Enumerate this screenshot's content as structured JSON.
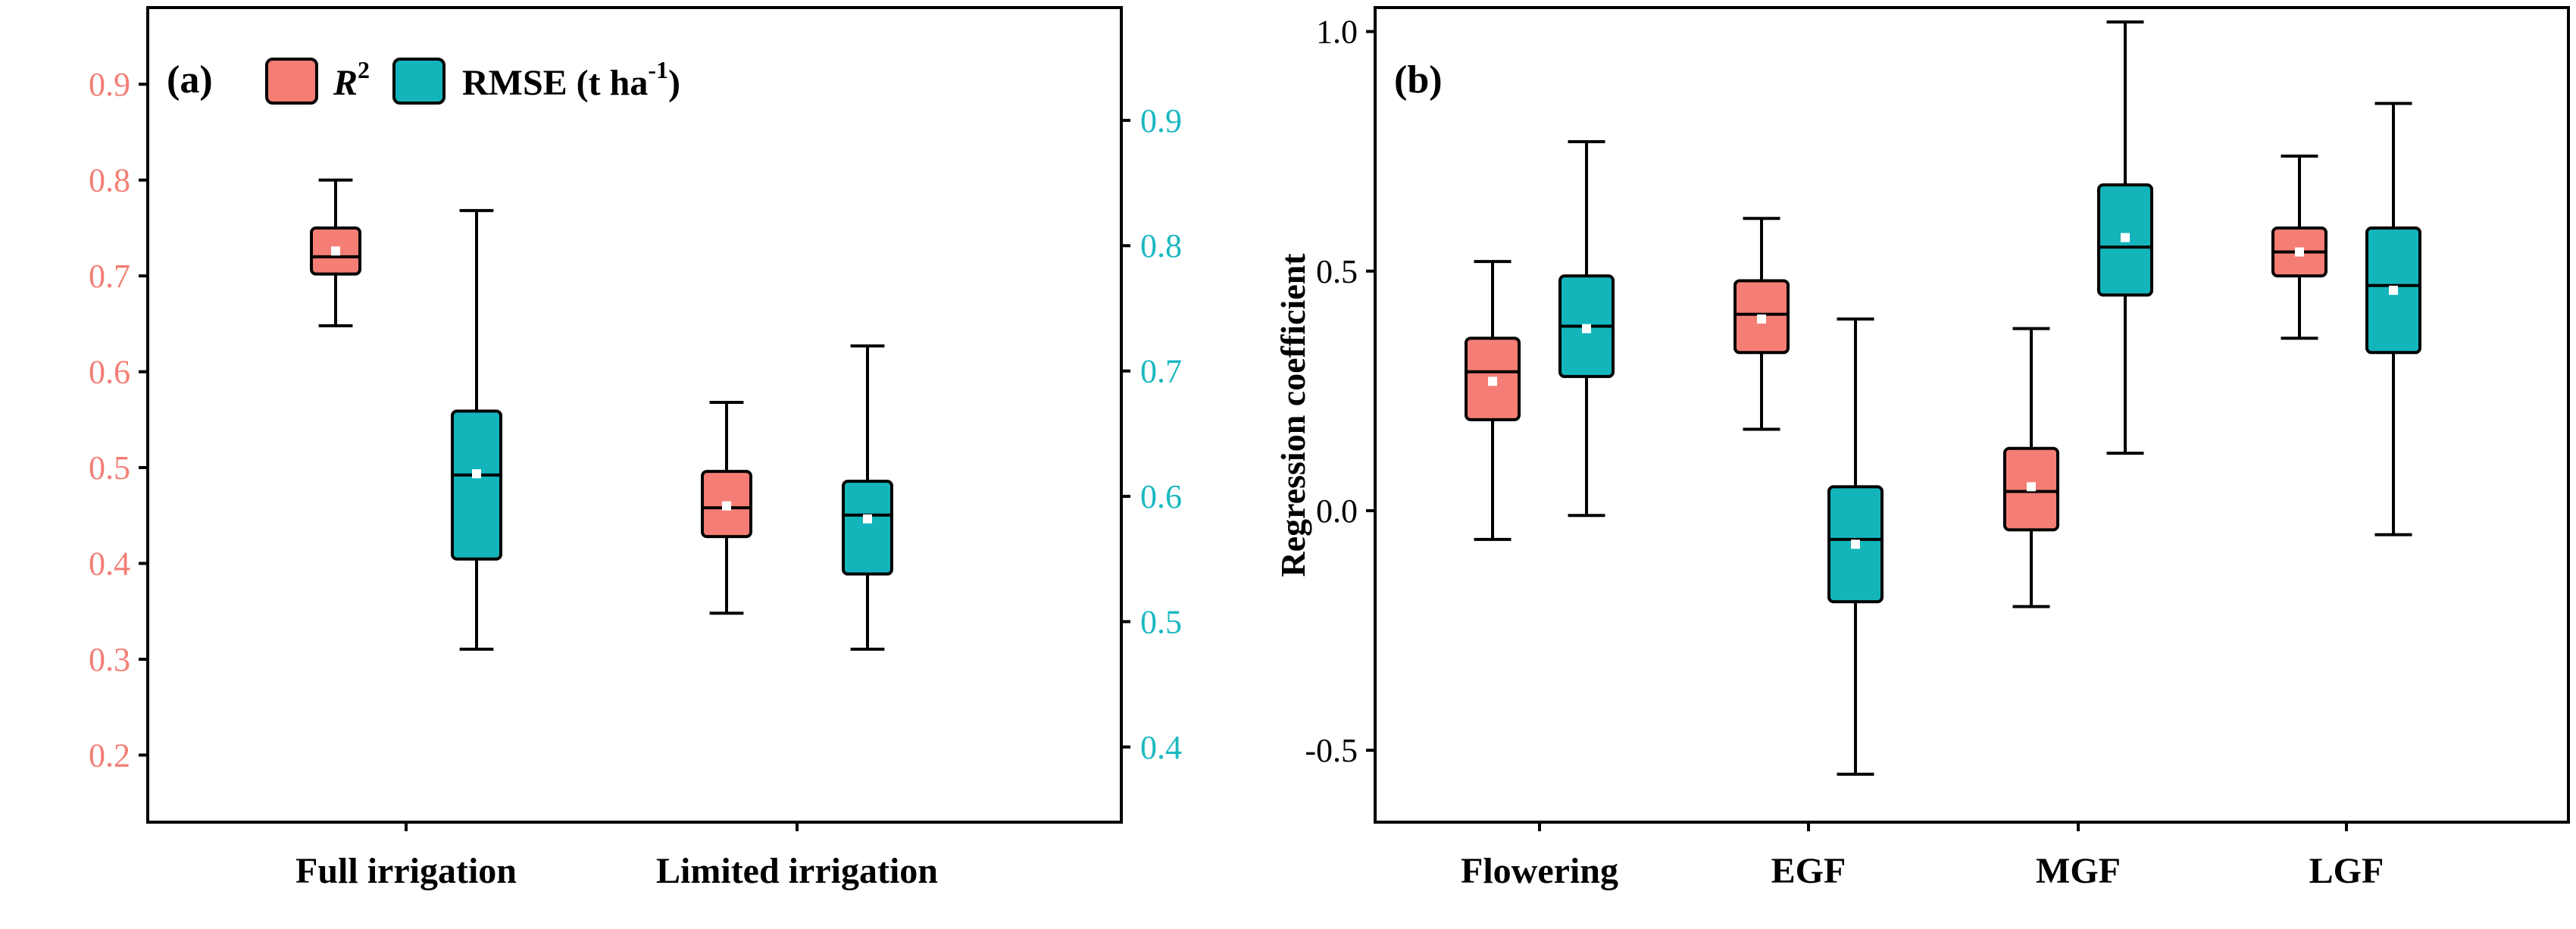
{
  "colors": {
    "r2": "#f47e75",
    "rmse": "#13b5bb",
    "axis": "#000000",
    "mean": "#ffffff"
  },
  "chart_data": [
    {
      "panel": "(a)",
      "type": "box",
      "categories": [
        "Full irrigation",
        "Limited irrigation"
      ],
      "legend": {
        "r2_label": "R",
        "r2_sup": "2",
        "rmse_label": "RMSE (t ha",
        "rmse_sup": "-1",
        "rmse_close": ")",
        "placement": "top-left"
      },
      "left_axis": {
        "ylim": [
          0.13,
          0.98
        ],
        "ticks": [
          "0.2",
          "0.3",
          "0.4",
          "0.5",
          "0.6",
          "0.7",
          "0.8",
          "0.9"
        ],
        "color": "#f47e75"
      },
      "right_axis": {
        "ylim": [
          0.34,
          0.99
        ],
        "ticks": [
          "0.4",
          "0.5",
          "0.6",
          "0.7",
          "0.8",
          "0.9"
        ],
        "color": "#1ab8c0"
      },
      "series": [
        {
          "name": "R2",
          "axis": "left",
          "boxes": [
            {
              "min": 0.648,
              "q1": 0.702,
              "median": 0.72,
              "q3": 0.75,
              "max": 0.8,
              "mean": 0.726
            },
            {
              "min": 0.348,
              "q1": 0.428,
              "median": 0.458,
              "q3": 0.496,
              "max": 0.568,
              "mean": 0.46
            }
          ]
        },
        {
          "name": "RMSE",
          "axis": "right",
          "boxes": [
            {
              "min": 0.478,
              "q1": 0.55,
              "median": 0.617,
              "q3": 0.668,
              "max": 0.828,
              "mean": 0.618
            },
            {
              "min": 0.478,
              "q1": 0.538,
              "median": 0.585,
              "q3": 0.612,
              "max": 0.72,
              "mean": 0.582
            }
          ]
        }
      ]
    },
    {
      "panel": "(b)",
      "type": "box",
      "ylabel": "Regression coefficient",
      "categories": [
        "Flowering",
        "EGF",
        "MGF",
        "LGF"
      ],
      "ylim": [
        -0.65,
        1.05
      ],
      "ticks": [
        "-0.5",
        "0.0",
        "0.5",
        "1.0"
      ],
      "series": [
        {
          "name": "R2",
          "boxes": [
            {
              "min": -0.06,
              "q1": 0.19,
              "median": 0.29,
              "q3": 0.36,
              "max": 0.52,
              "mean": 0.27
            },
            {
              "min": 0.17,
              "q1": 0.33,
              "median": 0.41,
              "q3": 0.48,
              "max": 0.61,
              "mean": 0.4
            },
            {
              "min": -0.2,
              "q1": -0.04,
              "median": 0.04,
              "q3": 0.13,
              "max": 0.38,
              "mean": 0.05
            },
            {
              "min": 0.36,
              "q1": 0.49,
              "median": 0.54,
              "q3": 0.59,
              "max": 0.74,
              "mean": 0.54
            }
          ]
        },
        {
          "name": "RMSE",
          "boxes": [
            {
              "min": -0.01,
              "q1": 0.28,
              "median": 0.385,
              "q3": 0.49,
              "max": 0.77,
              "mean": 0.38
            },
            {
              "min": -0.55,
              "q1": -0.19,
              "median": -0.06,
              "q3": 0.05,
              "max": 0.4,
              "mean": -0.07
            },
            {
              "min": 0.12,
              "q1": 0.45,
              "median": 0.55,
              "q3": 0.68,
              "max": 1.02,
              "mean": 0.57
            },
            {
              "min": -0.05,
              "q1": 0.33,
              "median": 0.47,
              "q3": 0.59,
              "max": 0.85,
              "mean": 0.46
            }
          ]
        }
      ]
    }
  ]
}
